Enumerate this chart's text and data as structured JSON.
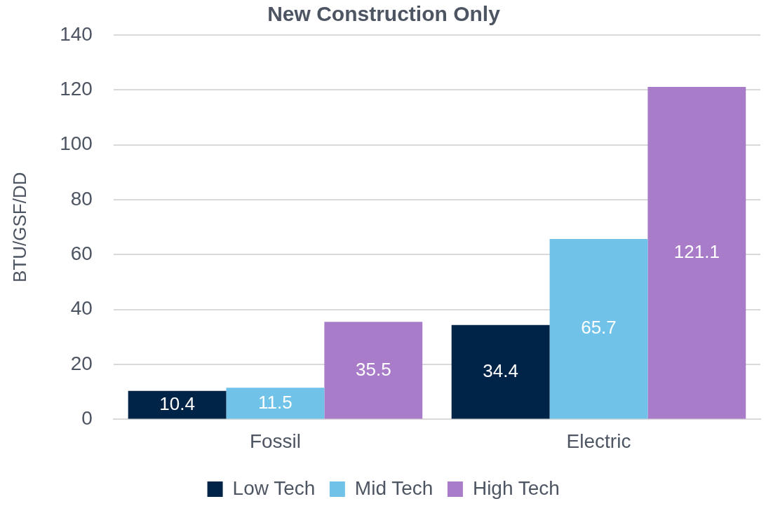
{
  "chart_data": {
    "type": "bar",
    "title": "New Construction Only",
    "ylabel": "BTU/GSF/DD",
    "categories": [
      "Fossil",
      "Electric"
    ],
    "series": [
      {
        "name": "Low Tech",
        "color": "#002447",
        "values": [
          10.4,
          34.4
        ]
      },
      {
        "name": "Mid Tech",
        "color": "#71c2e9",
        "values": [
          11.5,
          65.7
        ]
      },
      {
        "name": "High Tech",
        "color": "#a97cc9",
        "values": [
          35.5,
          121.1
        ]
      }
    ],
    "ylim": [
      0,
      140
    ],
    "yticks": [
      0,
      20,
      40,
      60,
      80,
      100,
      120,
      140
    ],
    "grid": "y",
    "legend": "bottom",
    "data_labels": true
  }
}
